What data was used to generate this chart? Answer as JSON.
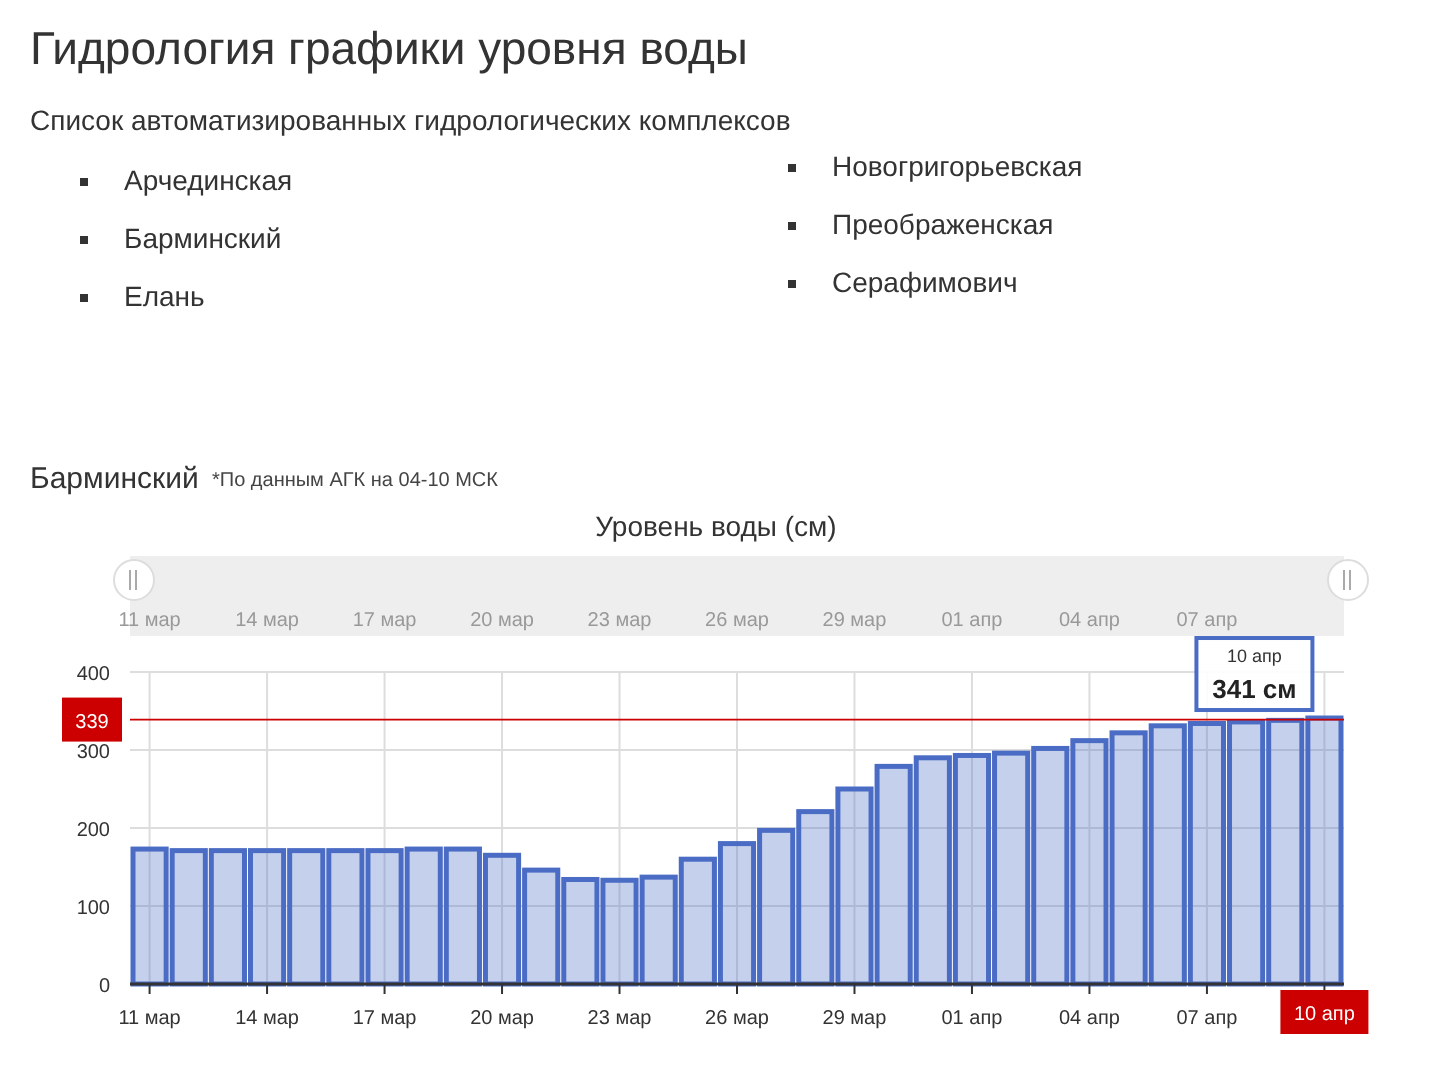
{
  "chart_data": {
    "type": "bar",
    "title": "Гидрология графики уровня воды",
    "subtitle": "Список автоматизированных гидрологических комплексов",
    "annotations": [
      "Арчединская",
      "Барминский",
      "Елань",
      "Новогригорьевская",
      "Преображенская",
      "Серафимович",
      "Барминский",
      "*По данным АГК на 04-10 МСК",
      "Уровень воды (см)",
      {
        "text": "341 см",
        "x": "10 апр",
        "y": 341
      }
    ],
    "categories": [
      "11 мар",
      null,
      null,
      "14 мар",
      null,
      null,
      "17 мар",
      null,
      null,
      "20 мар",
      null,
      null,
      "23 мар",
      null,
      null,
      "26 мар",
      null,
      null,
      "29 мар",
      null,
      null,
      "01 апр",
      null,
      null,
      "04 апр",
      null,
      null,
      "07 апр",
      null,
      null,
      "10 апр"
    ],
    "values": [
      173,
      171,
      171,
      171,
      171,
      171,
      171,
      173,
      173,
      165,
      146,
      134,
      133,
      137,
      160,
      180,
      197,
      221,
      250,
      279,
      290,
      293,
      296,
      302,
      312,
      322,
      331,
      334,
      336,
      338,
      341
    ],
    "color": "#4a6cc4",
    "ylim": [
      0,
      400
    ],
    "yticks": [
      0,
      100,
      200,
      300,
      400
    ],
    "grid": true,
    "ref_lines": [
      {
        "axis": "y",
        "value": 339,
        "label": "339",
        "color": "#cc0000"
      }
    ]
  }
}
